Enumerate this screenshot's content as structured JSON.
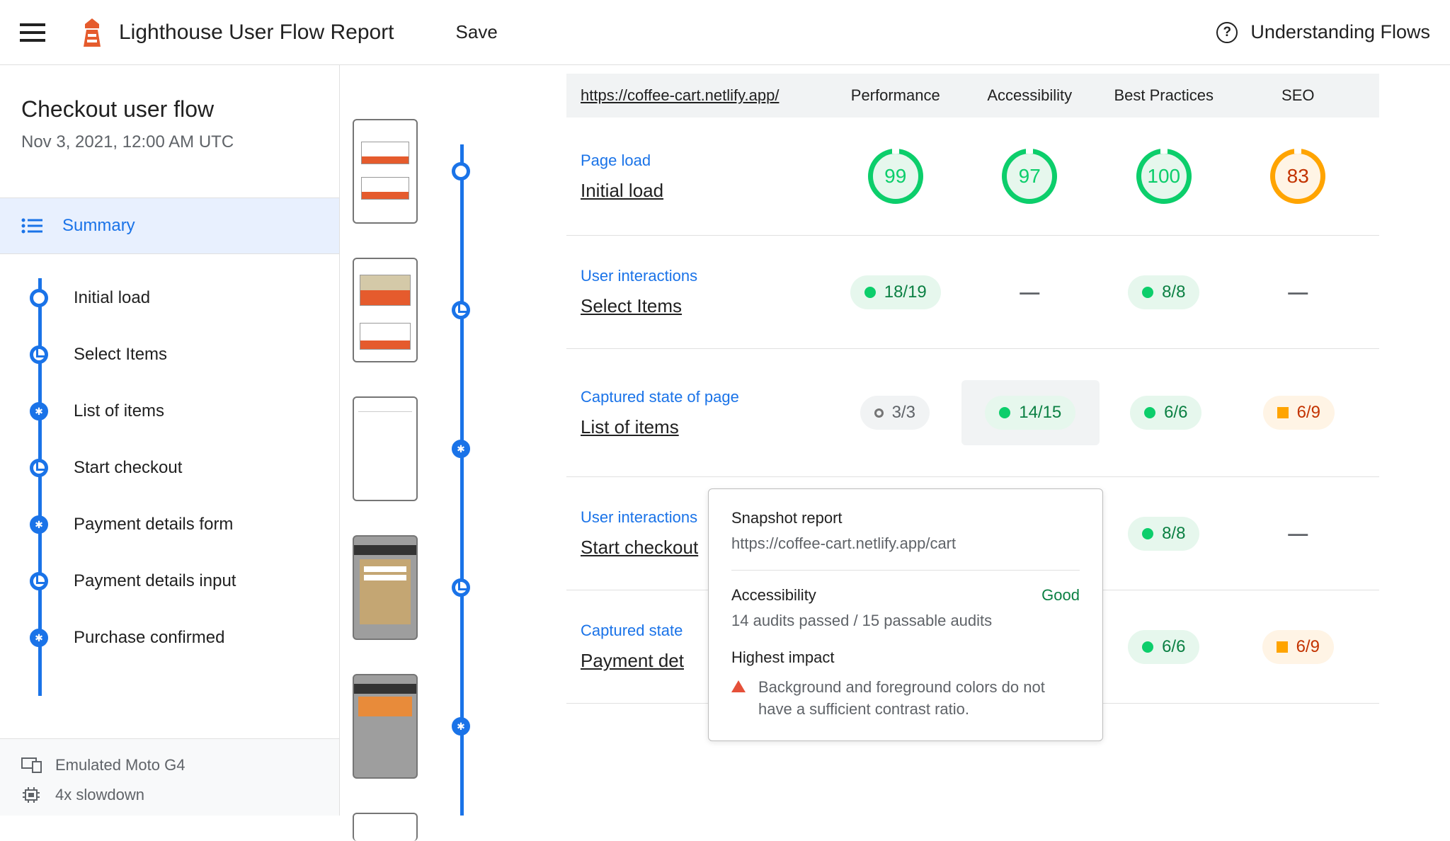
{
  "header": {
    "title": "Lighthouse User Flow Report",
    "save": "Save",
    "help": "Understanding Flows"
  },
  "sidebar": {
    "flow_title": "Checkout user flow",
    "flow_date": "Nov 3, 2021, 12:00 AM UTC",
    "summary": "Summary",
    "items": [
      {
        "label": "Initial load",
        "type": "navigation"
      },
      {
        "label": "Select Items",
        "type": "timespan"
      },
      {
        "label": "List of items",
        "type": "snapshot"
      },
      {
        "label": "Start checkout",
        "type": "timespan"
      },
      {
        "label": "Payment details form",
        "type": "snapshot"
      },
      {
        "label": "Payment details input",
        "type": "timespan"
      },
      {
        "label": "Purchase confirmed",
        "type": "snapshot"
      }
    ],
    "device": "Emulated Moto G4",
    "cpu": "4x slowdown"
  },
  "columns": {
    "url": "https://coffee-cart.netlify.app/",
    "perf": "Performance",
    "a11y": "Accessibility",
    "bp": "Best Practices",
    "seo": "SEO"
  },
  "steps": [
    {
      "type": "Page load",
      "name": "Initial load",
      "node": "navigation",
      "metrics": [
        {
          "kind": "gauge",
          "value": "99",
          "color": "green"
        },
        {
          "kind": "gauge",
          "value": "97",
          "color": "green"
        },
        {
          "kind": "gauge",
          "value": "100",
          "color": "green"
        },
        {
          "kind": "gauge",
          "value": "83",
          "color": "orange"
        }
      ]
    },
    {
      "type": "User interactions",
      "name": "Select Items",
      "node": "timespan",
      "metrics": [
        {
          "kind": "pill",
          "value": "18/19",
          "color": "green"
        },
        {
          "kind": "dash"
        },
        {
          "kind": "pill",
          "value": "8/8",
          "color": "green"
        },
        {
          "kind": "dash"
        }
      ]
    },
    {
      "type": "Captured state of page",
      "name": "List of items",
      "node": "snapshot",
      "highlight_col": 1,
      "metrics": [
        {
          "kind": "pill",
          "value": "3/3",
          "color": "gray"
        },
        {
          "kind": "pill",
          "value": "14/15",
          "color": "green"
        },
        {
          "kind": "pill",
          "value": "6/6",
          "color": "green"
        },
        {
          "kind": "pill",
          "value": "6/9",
          "color": "orange"
        }
      ]
    },
    {
      "type": "User interactions",
      "name": "Start checkout",
      "node": "timespan",
      "truncated": true,
      "metrics": [
        {
          "kind": "none"
        },
        {
          "kind": "none"
        },
        {
          "kind": "pill",
          "value": "8/8",
          "color": "green"
        },
        {
          "kind": "dash"
        }
      ]
    },
    {
      "type": "Captured state",
      "name": "Payment det",
      "node": "snapshot",
      "truncated": true,
      "metrics": [
        {
          "kind": "none"
        },
        {
          "kind": "none"
        },
        {
          "kind": "pill",
          "value": "6/6",
          "color": "green"
        },
        {
          "kind": "pill",
          "value": "6/9",
          "color": "orange"
        }
      ]
    }
  ],
  "tooltip": {
    "title": "Snapshot report",
    "url": "https://coffee-cart.netlify.app/cart",
    "category": "Accessibility",
    "status": "Good",
    "audits": "14 audits passed / 15 passable audits",
    "impact_label": "Highest impact",
    "issue": "Background and foreground colors do not have a sufficient contrast ratio."
  },
  "colors": {
    "primary": "#1a73e8",
    "green": "#0cce6b",
    "orange": "#ffa400",
    "red_orange": "#c33300"
  }
}
